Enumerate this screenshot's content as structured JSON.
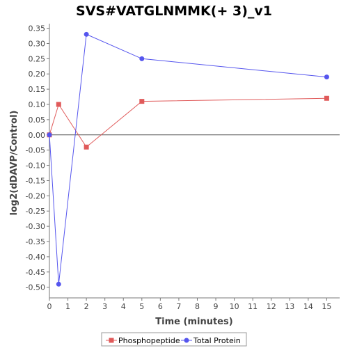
{
  "chart_data": {
    "type": "line",
    "title": "SVS#VATGLNMMK(+ 3)_v1",
    "xlabel": "Time (minutes)",
    "ylabel": "log2(dDAVP/Control)",
    "xlim": [
      0,
      15.7
    ],
    "ylim": [
      -0.535,
      0.365
    ],
    "x_ticks": [
      0,
      1,
      2,
      3,
      4,
      5,
      6,
      7,
      8,
      9,
      10,
      11,
      12,
      13,
      14,
      15
    ],
    "y_ticks": [
      -0.5,
      -0.45,
      -0.4,
      -0.35,
      -0.3,
      -0.25,
      -0.2,
      -0.15,
      -0.1,
      -0.05,
      0.0,
      0.05,
      0.1,
      0.15,
      0.2,
      0.25,
      0.3,
      0.35
    ],
    "zero_line": true,
    "grid": false,
    "legend_position": "bottom",
    "series": [
      {
        "name": "Phosphopeptide",
        "color": "#e05a5a",
        "marker": "square",
        "x": [
          0,
          0.5,
          2,
          5,
          15
        ],
        "y": [
          0.0,
          0.1,
          -0.04,
          0.11,
          0.12
        ]
      },
      {
        "name": "Total Protein",
        "color": "#5555ee",
        "marker": "circle",
        "x": [
          0,
          0.5,
          2,
          5,
          15
        ],
        "y": [
          0.0,
          -0.49,
          0.33,
          0.25,
          0.19
        ]
      }
    ]
  }
}
